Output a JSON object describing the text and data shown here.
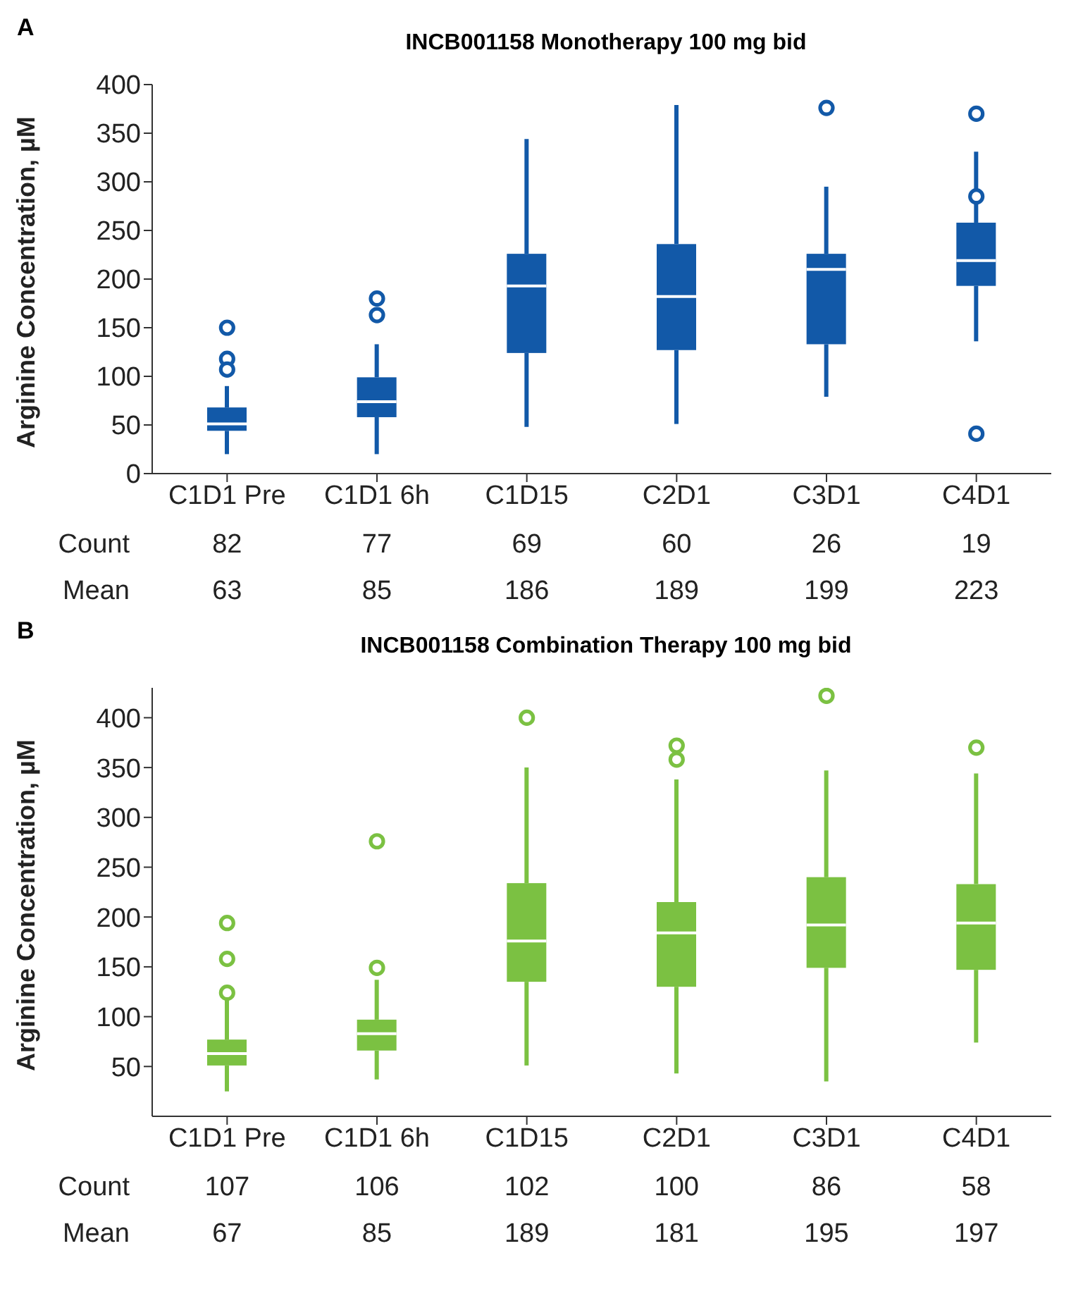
{
  "chart_data": [
    {
      "type": "box",
      "title": "INCB001158 Monotherapy 100 mg bid",
      "ylabel": "Arginine Concentration, µM",
      "categories": [
        "C1D1 Pre",
        "C1D1 6h",
        "C1D15",
        "C2D1",
        "C3D1",
        "C4D1"
      ],
      "series": [
        {
          "color": "#1259a8",
          "boxes": [
            {
              "low": 20,
              "q1": 44,
              "median": 51,
              "q3": 68,
              "high": 90,
              "outliers": [
                150,
                118,
                107
              ]
            },
            {
              "low": 20,
              "q1": 58,
              "median": 74,
              "q3": 99,
              "high": 133,
              "outliers": [
                180,
                163
              ]
            },
            {
              "low": 48,
              "q1": 124,
              "median": 193,
              "q3": 226,
              "high": 344
            },
            {
              "low": 51,
              "q1": 127,
              "median": 182,
              "q3": 236,
              "high": 379
            },
            {
              "low": 79,
              "q1": 133,
              "median": 210,
              "q3": 226,
              "high": 295,
              "outliers": [
                376
              ]
            },
            {
              "low": 136,
              "q1": 193,
              "median": 219,
              "q3": 258,
              "high": 331,
              "outliers": [
                370,
                285,
                41
              ]
            }
          ]
        }
      ],
      "ylim": [
        0,
        400
      ],
      "yticks": [
        0,
        50,
        100,
        150,
        200,
        250,
        300,
        350,
        400
      ],
      "annotations": [
        "A",
        "Count",
        "82",
        "77",
        "69",
        "60",
        "26",
        "19",
        "Mean",
        "63",
        "85",
        "186",
        "189",
        "199",
        "223"
      ]
    },
    {
      "type": "box",
      "title": "INCB001158 Combination Therapy 100 mg bid",
      "ylabel": "Arginine Concentration, µM",
      "categories": [
        "C1D1 Pre",
        "C1D1 6h",
        "C1D15",
        "C2D1",
        "C3D1",
        "C4D1"
      ],
      "series": [
        {
          "color": "#7bc142",
          "boxes": [
            {
              "low": 25,
              "q1": 51,
              "median": 63,
              "q3": 77,
              "high": 118,
              "outliers": [
                194,
                158,
                124
              ]
            },
            {
              "low": 37,
              "q1": 66,
              "median": 83,
              "q3": 97,
              "high": 137,
              "outliers": [
                276,
                149
              ]
            },
            {
              "low": 51,
              "q1": 135,
              "median": 176,
              "q3": 234,
              "high": 350,
              "outliers": [
                400
              ]
            },
            {
              "low": 43,
              "q1": 130,
              "median": 184,
              "q3": 215,
              "high": 338,
              "outliers": [
                372,
                358
              ]
            },
            {
              "low": 35,
              "q1": 149,
              "median": 192,
              "q3": 240,
              "high": 347,
              "outliers": [
                422
              ]
            },
            {
              "low": 74,
              "q1": 147,
              "median": 194,
              "q3": 233,
              "high": 344,
              "outliers": [
                370
              ]
            }
          ]
        }
      ],
      "ylim": [
        0,
        430
      ],
      "yticks": [
        50,
        100,
        150,
        200,
        250,
        300,
        350,
        400
      ],
      "annotations": [
        "B",
        "Count",
        "107",
        "106",
        "102",
        "100",
        "86",
        "58",
        "Mean",
        "67",
        "85",
        "189",
        "181",
        "195",
        "197"
      ]
    }
  ]
}
